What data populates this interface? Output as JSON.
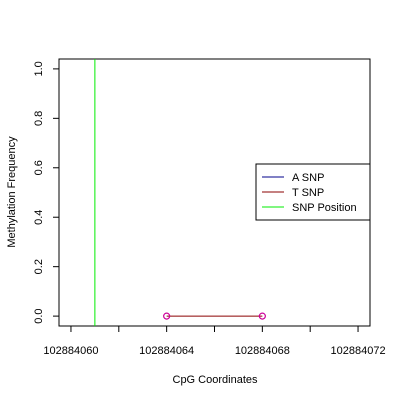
{
  "chart_data": {
    "type": "line",
    "title": "",
    "xlabel": "CpG Coordinates",
    "ylabel": "Methylation Frequency",
    "xlim": [
      102884059.5,
      102884072.5
    ],
    "ylim": [
      -0.04,
      1.04
    ],
    "x_ticks": [
      102884060,
      102884064,
      102884068,
      102884072
    ],
    "x_tick_labels": [
      "102884060",
      "102884064",
      "102884068",
      "102884072"
    ],
    "x_minor_ticks": [
      102884062,
      102884066,
      102884070
    ],
    "y_ticks": [
      0.0,
      0.2,
      0.4,
      0.6,
      0.8,
      1.0
    ],
    "y_tick_labels": [
      "0.0",
      "0.2",
      "0.4",
      "0.6",
      "0.8",
      "1.0"
    ],
    "grid": false,
    "legend_position": "right",
    "series": [
      {
        "name": "A SNP",
        "color": "#00008b",
        "x": [],
        "y": []
      },
      {
        "name": "T SNP",
        "color": "#8b0000",
        "x": [
          102884064,
          102884068
        ],
        "y": [
          0.0,
          0.0
        ],
        "marker": "open-circle",
        "marker_color": "#cc0099"
      }
    ],
    "snp_position": {
      "name": "SNP Position",
      "color": "#00ee00",
      "x": 102884061
    }
  }
}
